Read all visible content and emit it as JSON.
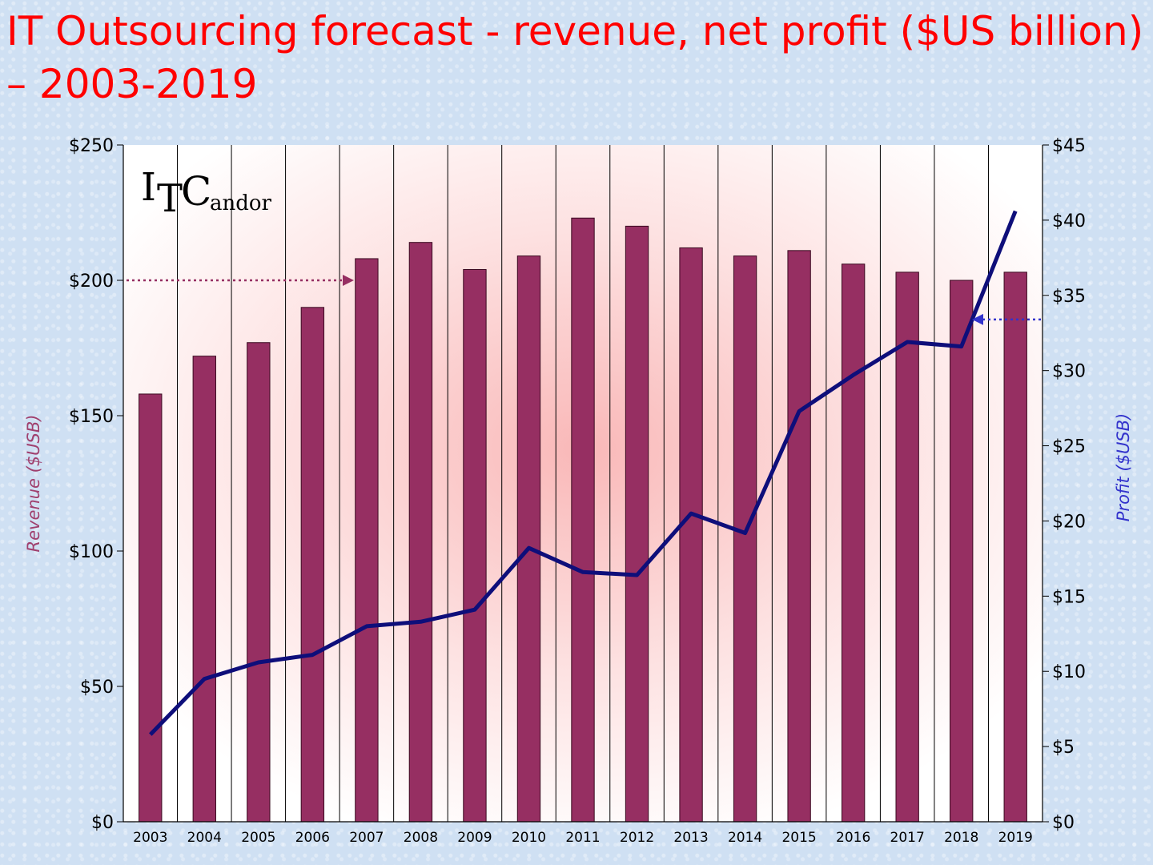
{
  "title": "IT Outsourcing forecast - revenue, net profit ($US billion) – 2003-2019",
  "logo": {
    "text_i": "I",
    "text_t": "T",
    "text_c": "C",
    "text_rest": "andor"
  },
  "colors": {
    "bar": "#962f62",
    "line": "#0e0e7a",
    "left_axis_label": "#a0406e",
    "right_axis_label": "#3333cc",
    "title": "#ff0000"
  },
  "chart_data": {
    "type": "bar",
    "title": "IT Outsourcing forecast - revenue, net profit ($US billion) – 2003-2019",
    "categories": [
      "2003",
      "2004",
      "2005",
      "2006",
      "2007",
      "2008",
      "2009",
      "2010",
      "2011",
      "2012",
      "2013",
      "2014",
      "2015",
      "2016",
      "2017",
      "2018",
      "2019"
    ],
    "series": [
      {
        "type": "bar",
        "axis": "left",
        "values": [
          158,
          172,
          177,
          190,
          208,
          214,
          204,
          209,
          223,
          220,
          212,
          209,
          211,
          206,
          203,
          200,
          203
        ]
      },
      {
        "type": "line",
        "axis": "right",
        "values": [
          5.8,
          9.5,
          10.6,
          11.1,
          13.0,
          13.3,
          14.1,
          18.2,
          16.6,
          16.4,
          20.5,
          19.2,
          27.3,
          29.7,
          31.9,
          31.6,
          40.6
        ]
      }
    ],
    "ylabel": "Revenue ($USB)",
    "y2label": "Profit ($USB)",
    "ylim": [
      0,
      250
    ],
    "y2lim": [
      0,
      45
    ],
    "yticks": [
      "$0",
      "$50",
      "$100",
      "$150",
      "$200",
      "$250"
    ],
    "y2ticks": [
      "$0",
      "$5",
      "$10",
      "$15",
      "$20",
      "$25",
      "$30",
      "$35",
      "$40",
      "$45"
    ],
    "grid": "vertical",
    "annotations": [
      {
        "type": "arrow",
        "points_to": "left-axis",
        "at_value": 200
      },
      {
        "type": "arrow",
        "points_to": "right-axis",
        "at_value": 33.4
      }
    ]
  }
}
